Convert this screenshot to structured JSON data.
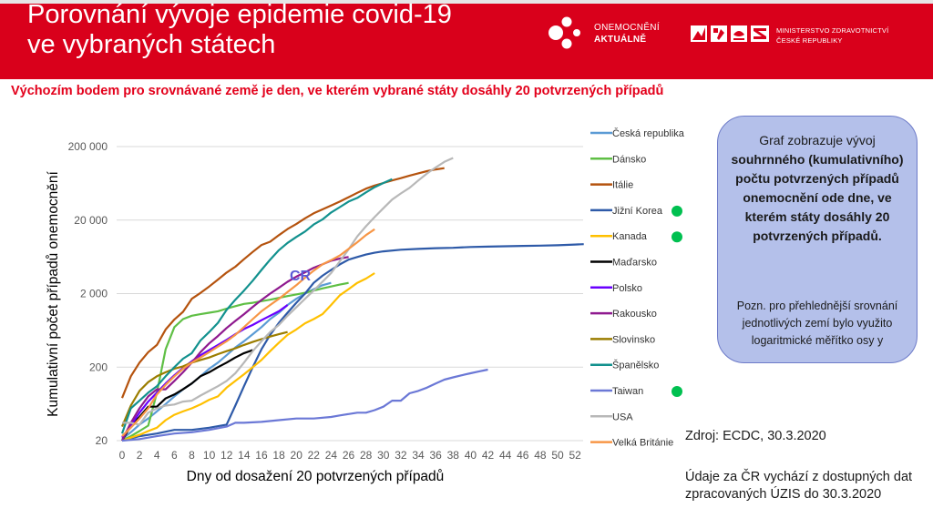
{
  "header": {
    "title_line1": "Porovnání vývoje epidemie covid-19",
    "title_line2": "ve vybraných státech",
    "logo1_line1": "ONEMOCNĚNÍ",
    "logo1_line2": "AKTUÁLNĚ",
    "logo2_line1": "MINISTERSTVO ZDRAVOTNICTVÍ",
    "logo2_line2": "ČESKÉ REPUBLIKY",
    "brand_color": "#d9001b"
  },
  "subtitle": "Výchozím bodem pro srovnávané země je den, ve kterém vybrané státy dosáhly 20 potvrzených případů",
  "infobox": {
    "main_part1": "Graf zobrazuje vývoj",
    "main_part2": "souhrnného (kumulativního) počtu potvrzených případů onemocnění ode dne, ve kterém státy dosáhly 20 potvrzených případů.",
    "note": "Pozn. pro přehlednější srovnání jednotlivých zemí bylo využito logaritmické měřítko osy y"
  },
  "source": "Zdroj: ECDC, 30.3.2020",
  "note_cr": "Údaje za ČR vychází z dostupných dat zpracovaných ÚZIS do 30.3.2020",
  "chart_data": {
    "type": "line",
    "title": "",
    "xlabel": "Dny od dosažení 20 potvrzených případů",
    "ylabel": "Kumulativní počet případů onemocnění",
    "yscale": "log",
    "ylim": [
      20,
      200000
    ],
    "xlim": [
      0,
      53
    ],
    "x_ticks": [
      "0",
      "2",
      "4",
      "6",
      "8",
      "10",
      "12",
      "14",
      "16",
      "18",
      "20",
      "22",
      "24",
      "26",
      "28",
      "30",
      "32",
      "34",
      "36",
      "38",
      "40",
      "42",
      "44",
      "46",
      "48",
      "50",
      "52"
    ],
    "y_ticks": [
      {
        "value": 20,
        "label": "20"
      },
      {
        "value": 200,
        "label": "200"
      },
      {
        "value": 2000,
        "label": "2 000"
      },
      {
        "value": 20000,
        "label": "20 000"
      },
      {
        "value": 200000,
        "label": "200 000"
      }
    ],
    "grid": true,
    "legend_position": "right",
    "annotation": {
      "text": "CR",
      "x": 20.5,
      "y": 3600
    },
    "series": [
      {
        "name": "Česká republika",
        "color": "#5b9bd5",
        "highlight": false,
        "x": [
          0,
          1,
          2,
          3,
          4,
          5,
          6,
          7,
          8,
          9,
          10,
          11,
          12,
          13,
          14,
          15,
          16,
          17,
          18,
          19,
          20,
          21,
          22,
          23,
          24
        ],
        "values": [
          21,
          26,
          33,
          40,
          50,
          63,
          80,
          100,
          120,
          150,
          190,
          230,
          290,
          370,
          450,
          560,
          700,
          900,
          1100,
          1400,
          1700,
          2000,
          2300,
          2600,
          2800
        ]
      },
      {
        "name": "Dánsko",
        "color": "#5fbf45",
        "highlight": false,
        "x": [
          0,
          1,
          2,
          3,
          4,
          5,
          6,
          7,
          8,
          9,
          10,
          11,
          12,
          13,
          14,
          15,
          16,
          17,
          18,
          19,
          20,
          21,
          22,
          23,
          24,
          25,
          26
        ],
        "values": [
          20,
          23,
          27,
          32,
          90,
          350,
          700,
          900,
          1000,
          1050,
          1100,
          1150,
          1250,
          1350,
          1450,
          1500,
          1580,
          1650,
          1750,
          1850,
          1950,
          2050,
          2200,
          2350,
          2500,
          2650,
          2800
        ]
      },
      {
        "name": "Itálie",
        "color": "#b5530e",
        "highlight": false,
        "x": [
          0,
          1,
          2,
          3,
          4,
          5,
          6,
          7,
          8,
          9,
          10,
          11,
          12,
          13,
          14,
          15,
          16,
          17,
          18,
          19,
          20,
          21,
          22,
          23,
          24,
          25,
          26,
          27,
          28,
          29,
          30,
          31,
          32,
          33,
          34,
          35,
          36,
          37
        ],
        "values": [
          76,
          150,
          230,
          320,
          400,
          650,
          890,
          1130,
          1700,
          2040,
          2500,
          3100,
          3860,
          4640,
          5880,
          7380,
          9170,
          10150,
          12460,
          15110,
          17660,
          21160,
          24750,
          27980,
          31500,
          35700,
          41000,
          47000,
          53500,
          59100,
          63900,
          69200,
          74400,
          80500,
          86500,
          92500,
          97700,
          101700
        ]
      },
      {
        "name": "Jižní Korea",
        "color": "#2e5aa8",
        "highlight": false,
        "x": [
          0,
          2,
          4,
          6,
          8,
          10,
          12,
          13,
          14,
          15,
          16,
          17,
          18,
          19,
          20,
          21,
          22,
          23,
          24,
          25,
          26,
          27,
          28,
          29,
          30,
          32,
          34,
          36,
          38,
          40,
          42,
          44,
          46,
          48,
          50,
          52,
          53
        ],
        "values": [
          20,
          23,
          25,
          28,
          28,
          30,
          33,
          60,
          110,
          200,
          350,
          550,
          800,
          1100,
          1500,
          2000,
          2800,
          3500,
          4200,
          5000,
          5800,
          6300,
          6800,
          7200,
          7500,
          7900,
          8100,
          8300,
          8400,
          8600,
          8700,
          8800,
          8900,
          9000,
          9100,
          9300,
          9400
        ]
      },
      {
        "name": "Kanada",
        "color": "#ffc000",
        "highlight": false,
        "x": [
          0,
          1,
          2,
          3,
          4,
          5,
          6,
          7,
          8,
          9,
          10,
          11,
          12,
          13,
          14,
          15,
          16,
          17,
          18,
          19,
          20,
          21,
          22,
          23,
          24,
          25,
          26,
          27,
          28,
          29
        ],
        "values": [
          20,
          22,
          24,
          27,
          30,
          38,
          45,
          50,
          55,
          62,
          72,
          80,
          105,
          130,
          160,
          200,
          250,
          330,
          430,
          550,
          650,
          790,
          900,
          1050,
          1400,
          1900,
          2300,
          2800,
          3200,
          3800
        ]
      },
      {
        "name": "Maďarsko",
        "color": "#000000",
        "highlight": false,
        "x": [
          0,
          1,
          2,
          3,
          4,
          5,
          6,
          7,
          8,
          9,
          10,
          11,
          12,
          13,
          14,
          15
        ],
        "values": [
          20,
          32,
          42,
          58,
          58,
          75,
          85,
          100,
          120,
          150,
          170,
          200,
          230,
          270,
          310,
          340
        ]
      },
      {
        "name": "Polsko",
        "color": "#6a00ff",
        "highlight": false,
        "x": [
          0,
          1,
          2,
          3,
          4,
          5,
          6,
          7,
          8,
          9,
          10,
          11,
          12,
          13,
          14,
          15,
          16,
          17,
          18,
          19
        ],
        "values": [
          22,
          32,
          48,
          68,
          90,
          120,
          155,
          195,
          240,
          290,
          340,
          400,
          470,
          560,
          660,
          750,
          870,
          1000,
          1150,
          1400
        ]
      },
      {
        "name": "Rakousko",
        "color": "#8f1a8f",
        "highlight": false,
        "x": [
          0,
          1,
          2,
          3,
          4,
          5,
          6,
          7,
          8,
          9,
          10,
          11,
          12,
          13,
          14,
          15,
          16,
          17,
          18,
          19,
          20,
          21,
          22,
          23,
          24,
          25,
          26
        ],
        "values": [
          20,
          35,
          55,
          80,
          100,
          100,
          130,
          170,
          230,
          320,
          420,
          530,
          680,
          850,
          1050,
          1320,
          1640,
          2000,
          2400,
          2900,
          3400,
          3900,
          4500,
          5000,
          5600,
          6000,
          6300
        ]
      },
      {
        "name": "Slovinsko",
        "color": "#9b7d00",
        "highlight": false,
        "x": [
          0,
          1,
          2,
          3,
          4,
          5,
          6,
          7,
          8,
          9,
          10,
          11,
          12,
          13,
          14,
          15,
          16,
          17,
          18,
          19
        ],
        "values": [
          31,
          60,
          95,
          125,
          150,
          170,
          190,
          205,
          230,
          250,
          270,
          300,
          330,
          360,
          400,
          440,
          480,
          520,
          560,
          600
        ]
      },
      {
        "name": "Španělsko",
        "color": "#12918e",
        "highlight": false,
        "x": [
          0,
          1,
          2,
          3,
          4,
          5,
          6,
          7,
          8,
          9,
          10,
          11,
          12,
          13,
          14,
          15,
          16,
          17,
          18,
          19,
          20,
          21,
          22,
          23,
          24,
          25,
          26,
          27,
          28,
          29,
          30,
          31
        ],
        "values": [
          25,
          55,
          70,
          90,
          110,
          150,
          200,
          260,
          310,
          460,
          600,
          800,
          1200,
          1650,
          2200,
          3000,
          4200,
          5800,
          7800,
          9800,
          11800,
          14000,
          17400,
          20400,
          25400,
          30000,
          35700,
          40000,
          47600,
          56000,
          64000,
          72000
        ]
      },
      {
        "name": "Taiwan",
        "color": "#6b78d6",
        "highlight": false,
        "x": [
          0,
          2,
          4,
          6,
          8,
          10,
          12,
          13,
          14,
          16,
          18,
          20,
          22,
          24,
          25,
          26,
          27,
          28,
          29,
          30,
          31,
          32,
          33,
          34,
          35,
          36,
          37,
          38,
          39,
          40,
          41,
          42
        ],
        "values": [
          20,
          21,
          23,
          25,
          26,
          28,
          31,
          35,
          35,
          36,
          38,
          40,
          40,
          42,
          44,
          46,
          48,
          48,
          52,
          58,
          70,
          70,
          88,
          95,
          105,
          120,
          135,
          145,
          155,
          165,
          175,
          185
        ]
      },
      {
        "name": "USA",
        "color": "#b8b8b8",
        "highlight": false,
        "x": [
          0,
          1,
          2,
          3,
          4,
          5,
          6,
          7,
          8,
          9,
          10,
          11,
          12,
          13,
          14,
          15,
          16,
          17,
          18,
          19,
          20,
          21,
          22,
          23,
          24,
          25,
          26,
          27,
          28,
          29,
          30,
          31,
          32,
          33,
          34,
          35,
          36,
          37,
          38
        ],
        "values": [
          35,
          35,
          33,
          48,
          55,
          60,
          62,
          68,
          70,
          82,
          95,
          110,
          130,
          165,
          230,
          330,
          450,
          600,
          750,
          1000,
          1300,
          1700,
          2200,
          2900,
          3800,
          5500,
          8000,
          12000,
          16500,
          22000,
          29000,
          38000,
          46000,
          55000,
          69000,
          86000,
          104000,
          124000,
          140000
        ]
      },
      {
        "name": "Velká Británie",
        "color": "#f79646",
        "highlight": false,
        "x": [
          0,
          1,
          2,
          3,
          4,
          5,
          6,
          7,
          8,
          9,
          10,
          11,
          12,
          13,
          14,
          15,
          16,
          17,
          18,
          19,
          20,
          21,
          22,
          23,
          24,
          25,
          26,
          27,
          28,
          29
        ],
        "values": [
          23,
          30,
          40,
          55,
          85,
          115,
          150,
          190,
          230,
          270,
          320,
          380,
          450,
          550,
          700,
          900,
          1150,
          1400,
          1700,
          2100,
          2600,
          3300,
          4100,
          5000,
          5700,
          6600,
          8100,
          10000,
          12500,
          15000
        ]
      }
    ],
    "highlighted_series_markers": [
      "Jižní Korea",
      "Kanada",
      "Taiwan"
    ],
    "marker_color": "#00c050"
  }
}
